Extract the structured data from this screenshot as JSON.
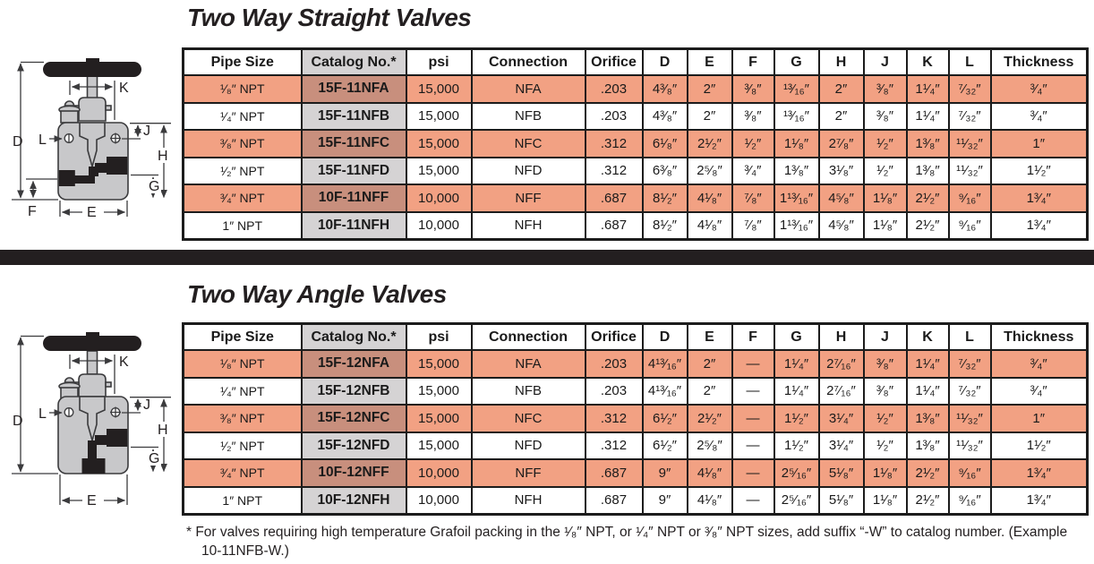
{
  "colors": {
    "salmon_row": "#F2A183",
    "catalog_gray": "#D5D3D4",
    "catalog_salmon": "#C88F7D",
    "divider_bar": "#231F20"
  },
  "straight": {
    "title": "Two Way Straight Valves",
    "columns": [
      "Pipe Size",
      "Catalog No.*",
      "psi",
      "Connection",
      "Orifice",
      "D",
      "E",
      "F",
      "G",
      "H",
      "J",
      "K",
      "L",
      "Thickness"
    ],
    "rows": [
      [
        "¹⁄₈″ NPT",
        "15F-11NFA",
        "15,000",
        "NFA",
        ".203",
        "4³⁄₈″",
        "2″",
        "³⁄₈″",
        "¹³⁄₁₆″",
        "2″",
        "³⁄₈″",
        "1¹⁄₄″",
        "⁷⁄₃₂″",
        "³⁄₄″"
      ],
      [
        "¹⁄₄″ NPT",
        "15F-11NFB",
        "15,000",
        "NFB",
        ".203",
        "4³⁄₈″",
        "2″",
        "³⁄₈″",
        "¹³⁄₁₆″",
        "2″",
        "³⁄₈″",
        "1¹⁄₄″",
        "⁷⁄₃₂″",
        "³⁄₄″"
      ],
      [
        "³⁄₈″ NPT",
        "15F-11NFC",
        "15,000",
        "NFC",
        ".312",
        "6¹⁄₈″",
        "2¹⁄₂″",
        "¹⁄₂″",
        "1¹⁄₈″",
        "2⁷⁄₈″",
        "¹⁄₂″",
        "1³⁄₈″",
        "¹¹⁄₃₂″",
        "1″"
      ],
      [
        "¹⁄₂″ NPT",
        "15F-11NFD",
        "15,000",
        "NFD",
        ".312",
        "6³⁄₈″",
        "2⁵⁄₈″",
        "³⁄₄″",
        "1³⁄₈″",
        "3¹⁄₈″",
        "¹⁄₂″",
        "1³⁄₈″",
        "¹¹⁄₃₂″",
        "1¹⁄₂″"
      ],
      [
        "³⁄₄″ NPT",
        "10F-11NFF",
        "10,000",
        "NFF",
        ".687",
        "8¹⁄₂″",
        "4¹⁄₈″",
        "⁷⁄₈″",
        "1¹³⁄₁₆″",
        "4⁵⁄₈″",
        "1¹⁄₈″",
        "2¹⁄₂″",
        "⁹⁄₁₆″",
        "1³⁄₄″"
      ],
      [
        "1″ NPT",
        "10F-11NFH",
        "10,000",
        "NFH",
        ".687",
        "8¹⁄₂″",
        "4¹⁄₈″",
        "⁷⁄₈″",
        "1¹³⁄₁₆″",
        "4⁵⁄₈″",
        "1¹⁄₈″",
        "2¹⁄₂″",
        "⁹⁄₁₆″",
        "1³⁄₄″"
      ]
    ]
  },
  "angle": {
    "title": "Two Way Angle Valves",
    "columns": [
      "Pipe Size",
      "Catalog No.*",
      "psi",
      "Connection",
      "Orifice",
      "D",
      "E",
      "F",
      "G",
      "H",
      "J",
      "K",
      "L",
      "Thickness"
    ],
    "rows": [
      [
        "¹⁄₈″ NPT",
        "15F-12NFA",
        "15,000",
        "NFA",
        ".203",
        "4¹³⁄₁₆″",
        "2″",
        "—",
        "1¹⁄₄″",
        "2⁷⁄₁₆″",
        "³⁄₈″",
        "1¹⁄₄″",
        "⁷⁄₃₂″",
        "³⁄₄″"
      ],
      [
        "¹⁄₄″ NPT",
        "15F-12NFB",
        "15,000",
        "NFB",
        ".203",
        "4¹³⁄₁₆″",
        "2″",
        "—",
        "1¹⁄₄″",
        "2⁷⁄₁₆″",
        "³⁄₈″",
        "1¹⁄₄″",
        "⁷⁄₃₂″",
        "³⁄₄″"
      ],
      [
        "³⁄₈″ NPT",
        "15F-12NFC",
        "15,000",
        "NFC",
        ".312",
        "6¹⁄₂″",
        "2¹⁄₂″",
        "—",
        "1¹⁄₂″",
        "3¹⁄₄″",
        "¹⁄₂″",
        "1³⁄₈″",
        "¹¹⁄₃₂″",
        "1″"
      ],
      [
        "¹⁄₂″ NPT",
        "15F-12NFD",
        "15,000",
        "NFD",
        ".312",
        "6¹⁄₂″",
        "2⁵⁄₈″",
        "—",
        "1¹⁄₂″",
        "3¹⁄₄″",
        "¹⁄₂″",
        "1³⁄₈″",
        "¹¹⁄₃₂″",
        "1¹⁄₂″"
      ],
      [
        "³⁄₄″ NPT",
        "10F-12NFF",
        "10,000",
        "NFF",
        ".687",
        "9″",
        "4¹⁄₈″",
        "—",
        "2⁵⁄₁₆″",
        "5¹⁄₈″",
        "1¹⁄₈″",
        "2¹⁄₂″",
        "⁹⁄₁₆″",
        "1³⁄₄″"
      ],
      [
        "1″ NPT",
        "10F-12NFH",
        "10,000",
        "NFH",
        ".687",
        "9″",
        "4¹⁄₈″",
        "—",
        "2⁵⁄₁₆″",
        "5¹⁄₈″",
        "1¹⁄₈″",
        "2¹⁄₂″",
        "⁹⁄₁₆″",
        "1³⁄₄″"
      ]
    ]
  },
  "footnote": "* For valves requiring high temperature Grafoil packing in the ¹⁄₈″ NPT, or ¹⁄₄″ NPT or ³⁄₈″ NPT sizes, add suffix “-W” to catalog number. (Example 10-11NFB-W.)",
  "diagram_labels": {
    "D": "D",
    "E": "E",
    "F": "F",
    "G": "G",
    "H": "H",
    "J": "J",
    "K": "K",
    "L": "L"
  }
}
